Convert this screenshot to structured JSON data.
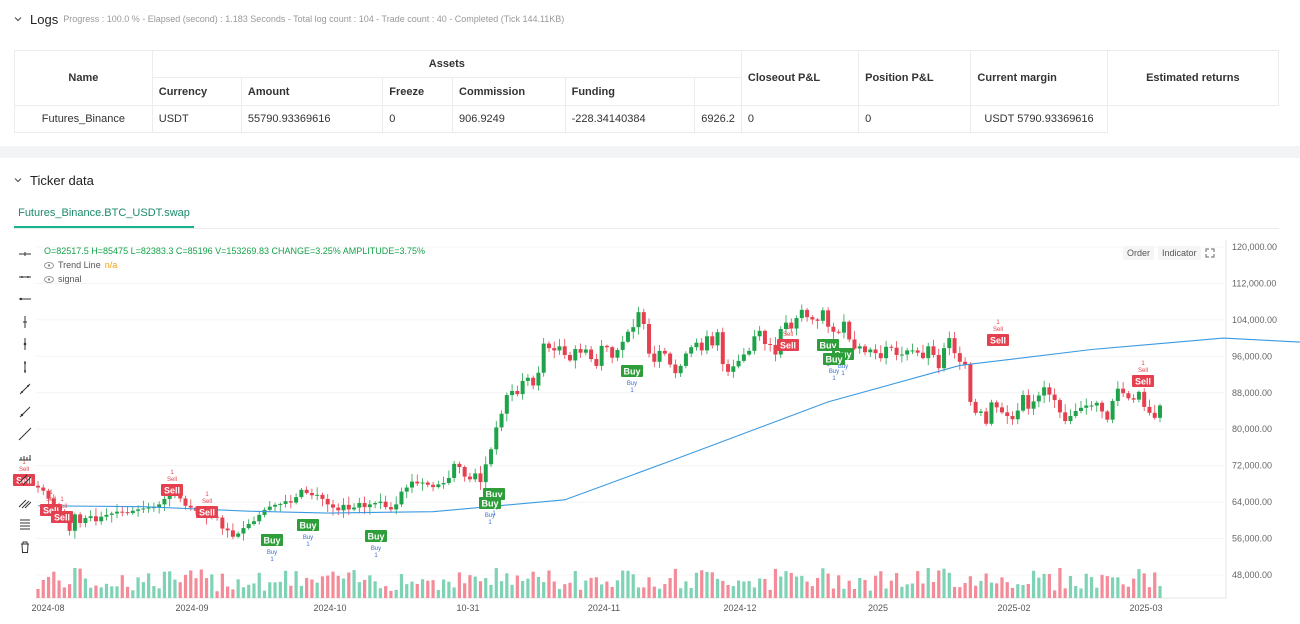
{
  "logs": {
    "title": "Logs",
    "subtitle": "Progress : 100.0 % - Elapsed (second) : 1.183 Seconds - Total log count : 104 - Trade count : 40 - Completed (Tick 144.11KB)"
  },
  "assets_table": {
    "group_header": "Assets",
    "headers": {
      "name": "Name",
      "currency": "Currency",
      "amount": "Amount",
      "freeze": "Freeze",
      "commission": "Commission",
      "funding": "Funding",
      "closeout": "Closeout P&L",
      "position": "Position P&L",
      "margin": "Current margin",
      "returns": "Estimated returns"
    },
    "row": {
      "name": "Futures_Binance",
      "currency": "USDT",
      "amount": "55790.93369616",
      "freeze": "0",
      "commission": "906.9249",
      "funding": "-228.34140384",
      "closeout": "6926.2",
      "position": "0",
      "margin": "0",
      "returns": "USDT 5790.93369616"
    }
  },
  "ticker": {
    "title": "Ticker data",
    "tab": "Futures_Binance.BTC_USDT.swap",
    "ohlc": "O=82517.5 H=85475 L=82383.3 C=85196 V=153269.83 CHANGE=3.25% AMPLITUDE=3.75%",
    "trend_label": "Trend Line",
    "trend_value": "n/a",
    "signal_label": "signal",
    "order_btn": "Order",
    "indicator_btn": "Indicator"
  },
  "toolbar_icons": [
    "crosshair-icon",
    "horizontal-line-icon",
    "horizontal-ray-icon",
    "vertical-line-icon",
    "cross-line-icon",
    "vertical-segment-icon",
    "trend-line-icon",
    "ray-icon",
    "extended-line-icon",
    "price-label-icon",
    "parallel-channel-icon",
    "fib-channel-icon",
    "text-lines-icon",
    "trash-icon"
  ],
  "colors": {
    "up": "#26a69a",
    "down": "#ef5350",
    "up_candle": "#1fa34a",
    "down_candle": "#e5404f",
    "trend": "#3b9ae1",
    "buy": "#2e9e3a",
    "sell": "#e5404f",
    "accent": "#16b48b"
  },
  "chart_data": {
    "type": "candlestick",
    "y_ticks": [
      "120,000.00",
      "112,000.00",
      "104,000.00",
      "96,000.00",
      "88,000.00",
      "80,000.00",
      "72,000.00",
      "64,000.00",
      "56,000.00",
      "48,000.00"
    ],
    "y_range": [
      44000,
      122000
    ],
    "x_ticks": [
      "2024-08",
      "2024-09",
      "2024-10",
      "10-31",
      "2024-11",
      "2024-12",
      "2025",
      "2025-02",
      "2025-03"
    ],
    "closes": [
      67200,
      66500,
      64800,
      62300,
      61800,
      60900,
      57700,
      61300,
      59400,
      60500,
      60900,
      59800,
      60800,
      61200,
      61500,
      61900,
      61800,
      61600,
      62100,
      62400,
      62600,
      62800,
      62900,
      63500,
      64700,
      66100,
      66300,
      64800,
      63200,
      62800,
      62100,
      61500,
      60700,
      60800,
      60600,
      58200,
      57800,
      56400,
      57100,
      58300,
      59200,
      59800,
      61200,
      62300,
      63000,
      63400,
      63600,
      64200,
      63900,
      65100,
      66700,
      66000,
      65500,
      65600,
      64700,
      63500,
      62800,
      62200,
      63400,
      62400,
      62800,
      63800,
      62900,
      63500,
      63800,
      64100,
      62900,
      62400,
      63500,
      66300,
      67200,
      68500,
      68100,
      68300,
      67800,
      67300,
      67900,
      68200,
      69300,
      72400,
      71700,
      69600,
      69000,
      70300,
      68400,
      72300,
      75600,
      80400,
      83400,
      87500,
      88400,
      87700,
      90600,
      91300,
      89600,
      92400,
      98800,
      97800,
      97300,
      98200,
      96300,
      95100,
      97600,
      96800,
      97500,
      95400,
      93900,
      98300,
      98000,
      95700,
      97400,
      99200,
      101400,
      102400,
      105700,
      103100,
      96600,
      94800,
      97200,
      96600,
      94200,
      92300,
      93900,
      96600,
      98000,
      99000,
      97300,
      100400,
      98400,
      101300,
      94300,
      92600,
      93800,
      95000,
      96400,
      97200,
      100400,
      101600,
      98700,
      98500,
      96400,
      102000,
      103400,
      102100,
      104400,
      106200,
      104600,
      104100,
      103800,
      106100,
      102500,
      101400,
      101200,
      103600,
      99700,
      97700,
      98200,
      96900,
      97500,
      96700,
      95600,
      98100,
      97900,
      96300,
      96400,
      97300,
      97300,
      96800,
      95600,
      98200,
      96300,
      93400,
      97800,
      100000,
      96700,
      94800,
      94200,
      86000,
      83600,
      83900,
      81200,
      85900,
      84800,
      83700,
      82900,
      82200,
      84100,
      87500,
      84500,
      86100,
      87400,
      89200,
      87600,
      86400,
      83700,
      81800,
      82900,
      84000,
      84700,
      85200,
      85200,
      85800,
      83900,
      82100,
      86200,
      88900,
      87900,
      86800,
      86500,
      88200,
      84900,
      83600,
      82500,
      85200
    ],
    "trend": [
      {
        "x": 0,
        "v": 63200
      },
      {
        "x": 20,
        "v": 63000
      },
      {
        "x": 40,
        "v": 62000
      },
      {
        "x": 55,
        "v": 61600
      },
      {
        "x": 75,
        "v": 61900
      },
      {
        "x": 100,
        "v": 64500
      },
      {
        "x": 120,
        "v": 73000
      },
      {
        "x": 150,
        "v": 86000
      },
      {
        "x": 175,
        "v": 94000
      },
      {
        "x": 200,
        "v": 97500
      },
      {
        "x": 225,
        "v": 100000
      },
      {
        "x": 250,
        "v": 98500
      },
      {
        "x": 270,
        "v": 97000
      },
      {
        "x": 285,
        "v": 93000
      },
      {
        "x": 300,
        "v": 89500
      },
      {
        "x": 315,
        "v": 87200
      }
    ],
    "signals": [
      {
        "type": "Sell",
        "x": 24,
        "y": 480
      },
      {
        "type": "Sell",
        "x": 51,
        "y": 510
      },
      {
        "type": "Sell",
        "x": 62,
        "y": 517
      },
      {
        "type": "Sell",
        "x": 172,
        "y": 490
      },
      {
        "type": "Sell",
        "x": 207,
        "y": 512
      },
      {
        "type": "Buy",
        "x": 272,
        "y": 540
      },
      {
        "type": "Buy",
        "x": 308,
        "y": 525
      },
      {
        "type": "Buy",
        "x": 376,
        "y": 536
      },
      {
        "type": "Buy",
        "x": 494,
        "y": 494
      },
      {
        "type": "Buy",
        "x": 490,
        "y": 503
      },
      {
        "type": "Buy",
        "x": 632,
        "y": 371
      },
      {
        "type": "Sell",
        "x": 788,
        "y": 345
      },
      {
        "type": "Buy",
        "x": 828,
        "y": 345
      },
      {
        "type": "Buy",
        "x": 843,
        "y": 354
      },
      {
        "type": "Buy",
        "x": 834,
        "y": 359
      },
      {
        "type": "Sell",
        "x": 998,
        "y": 340
      },
      {
        "type": "Sell",
        "x": 1143,
        "y": 381
      }
    ],
    "signal_label_buy": "Buy",
    "signal_label_sell": "Sell",
    "signal_qty": "1"
  }
}
